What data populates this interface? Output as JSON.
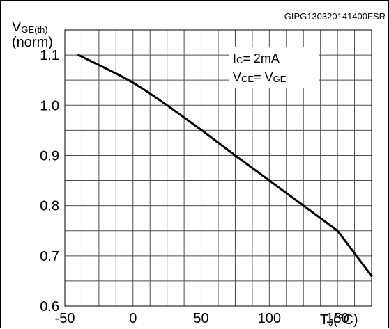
{
  "figure_id": "GIPG130320141400FSR",
  "chart_data": {
    "type": "line",
    "title": "",
    "ylabel": {
      "main": "V",
      "sub": "GE(th)",
      "unit": "(norm)"
    },
    "xlabel": {
      "main": "T",
      "sub": "J",
      "unit": "(°C)"
    },
    "xlim": [
      -50,
      175
    ],
    "ylim": [
      0.6,
      1.15
    ],
    "x_tick_labels": [
      "-50",
      "0",
      "50",
      "100",
      "150"
    ],
    "y_tick_labels": [
      "0.6",
      "0.7",
      "0.8",
      "0.9",
      "1.0",
      "1.1"
    ],
    "grid": true,
    "annotations": [
      {
        "main1": "I",
        "sub1": "C",
        "rest": "= 2mA"
      },
      {
        "main1": "V",
        "sub1": "CE",
        "rest": "= V",
        "sub2": "GE"
      }
    ],
    "series": [
      {
        "x": [
          -40,
          -25,
          -10,
          0,
          10,
          25,
          50,
          75,
          100,
          125,
          150,
          175
        ],
        "y": [
          1.1,
          1.08,
          1.06,
          1.045,
          1.028,
          1.0,
          0.951,
          0.9,
          0.85,
          0.8,
          0.75,
          0.66
        ]
      }
    ]
  }
}
